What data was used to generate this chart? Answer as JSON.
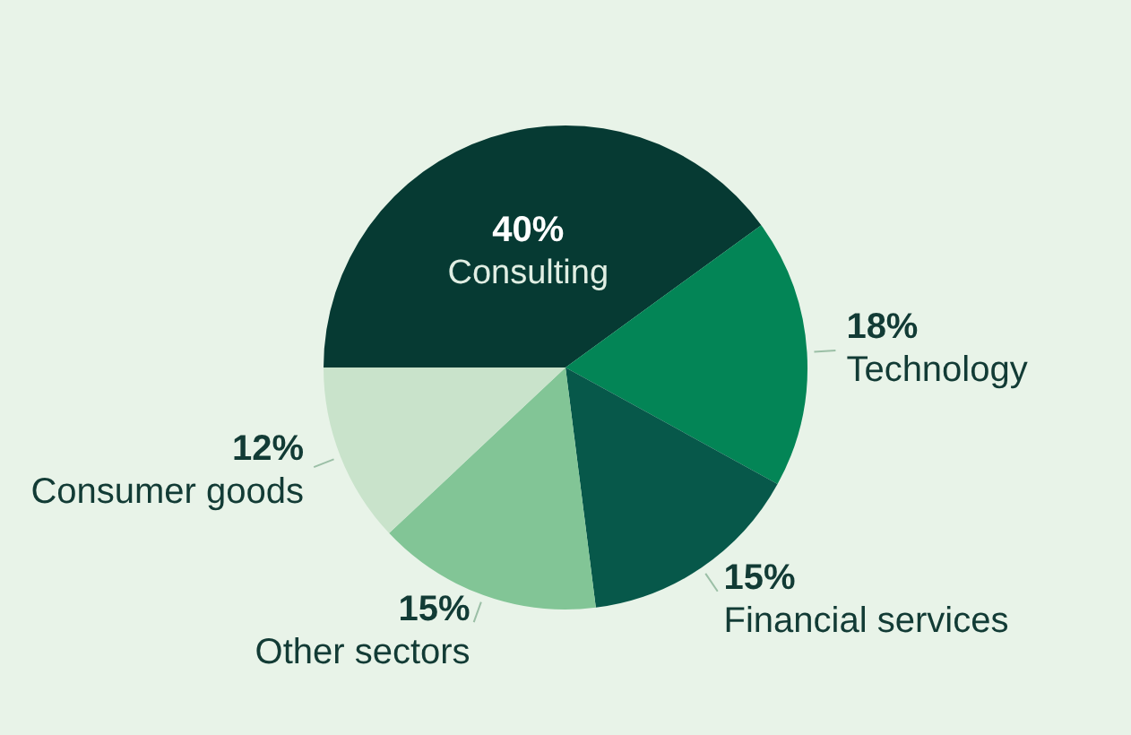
{
  "chart_data": {
    "type": "pie",
    "categories": [
      "Consulting",
      "Technology",
      "Financial services",
      "Other sectors",
      "Consumer goods"
    ],
    "values": [
      40,
      18,
      15,
      15,
      12
    ],
    "value_labels": [
      "40%",
      "18%",
      "15%",
      "15%",
      "12%"
    ],
    "colors": [
      "#063a33",
      "#038556",
      "#07584a",
      "#82c596",
      "#c9e3cb"
    ],
    "legend": false
  }
}
